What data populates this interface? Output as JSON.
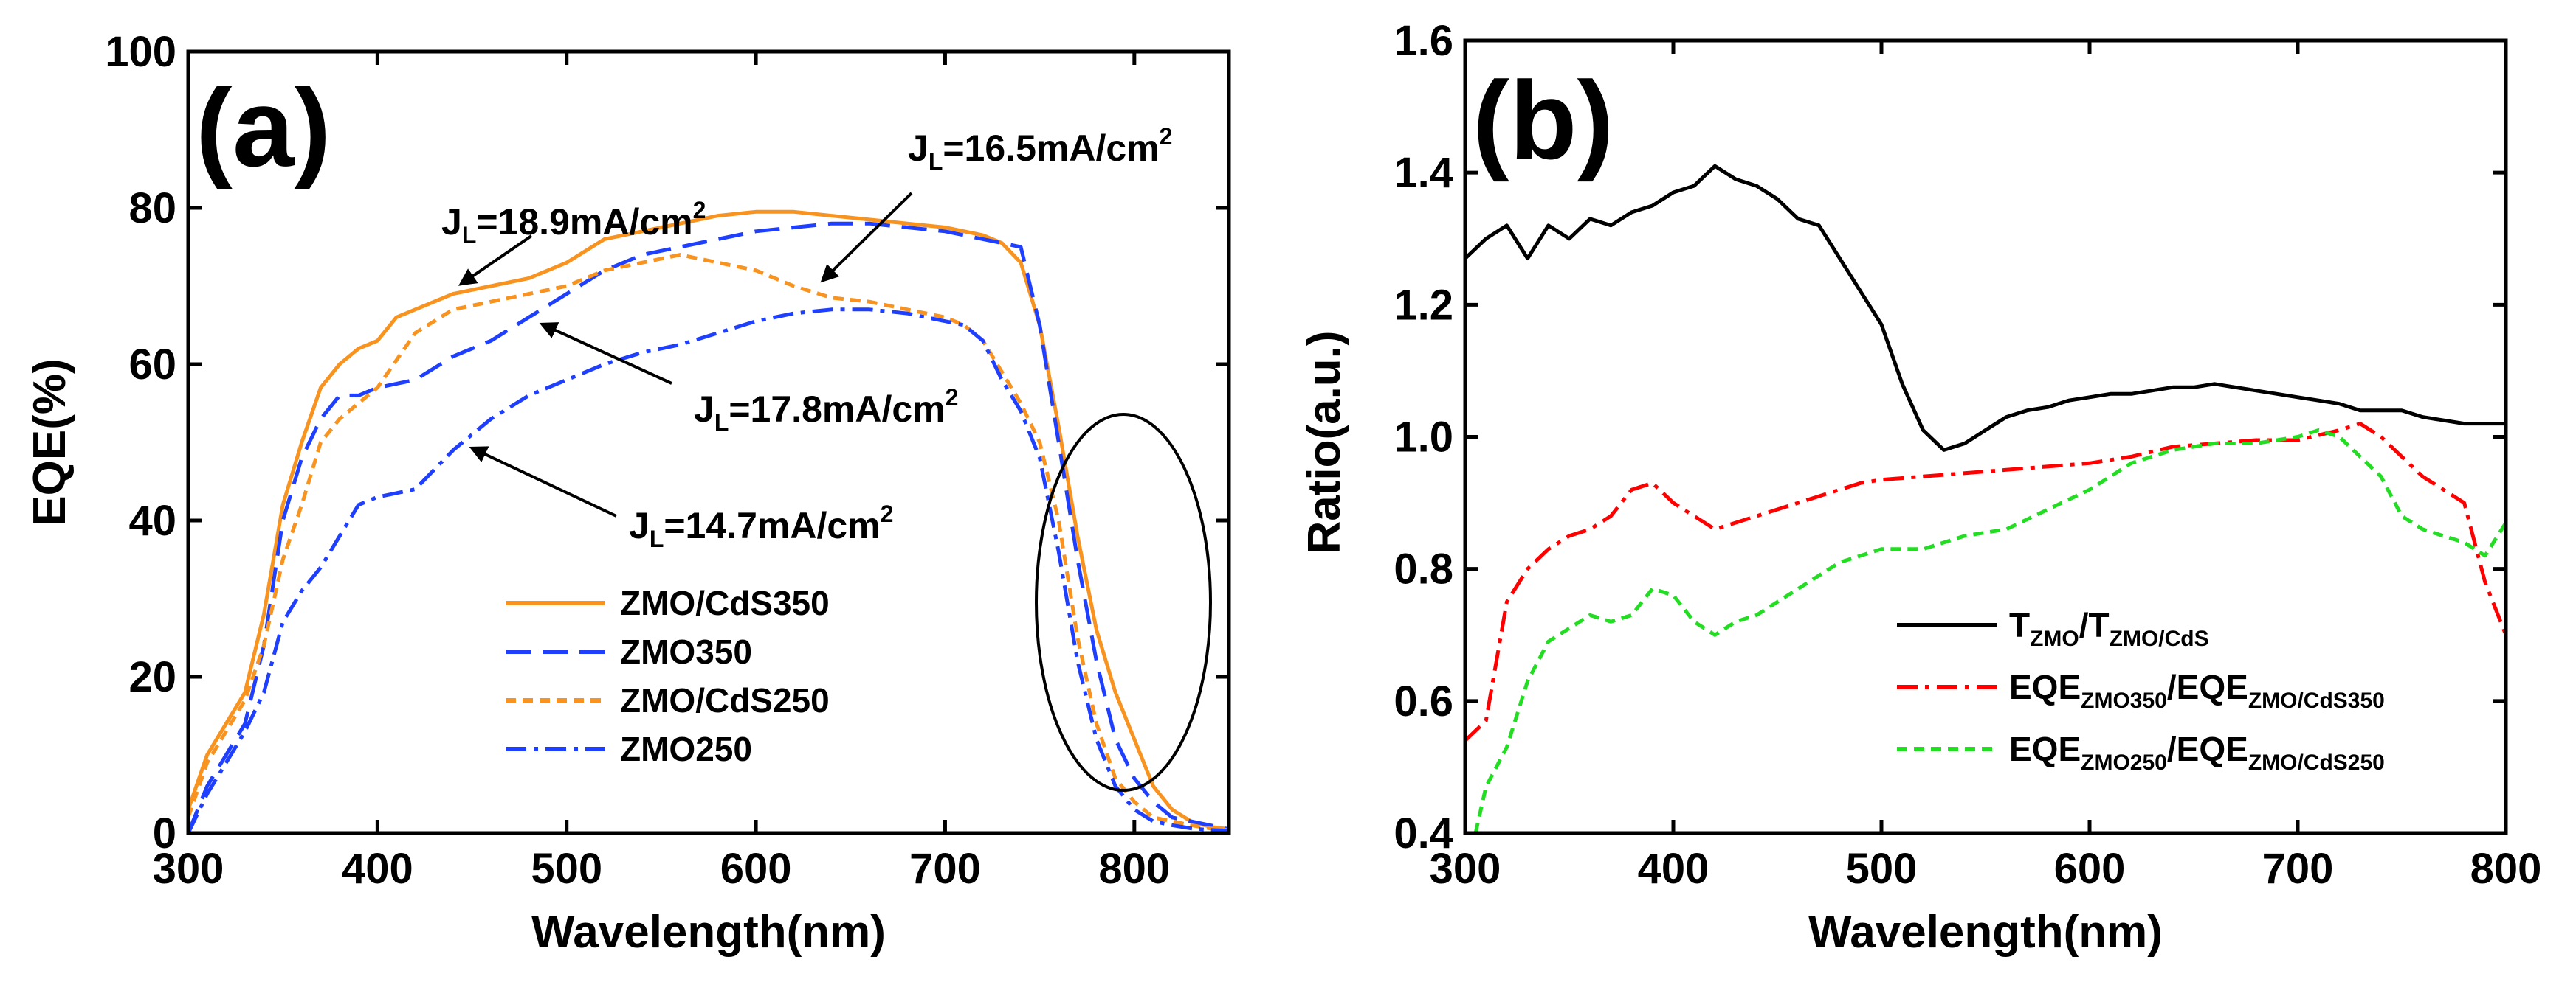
{
  "chart_data": [
    {
      "panel": "(a)",
      "type": "line",
      "xlabel": "Wavelength(nm)",
      "ylabel": "EQE(%)",
      "xlim": [
        300,
        850
      ],
      "ylim": [
        0,
        100
      ],
      "xticks": [
        300,
        400,
        500,
        600,
        700,
        800
      ],
      "yticks": [
        0,
        20,
        40,
        60,
        80,
        100
      ],
      "legend_position": "bottom-center",
      "series": [
        {
          "name": "ZMO/CdS350",
          "color": "#f7931e",
          "dash": "solid",
          "x": [
            300,
            310,
            320,
            330,
            340,
            350,
            360,
            370,
            380,
            390,
            400,
            410,
            420,
            440,
            460,
            480,
            500,
            520,
            540,
            560,
            580,
            600,
            620,
            640,
            660,
            680,
            700,
            720,
            730,
            740,
            750,
            760,
            770,
            780,
            790,
            800,
            810,
            820,
            830,
            840,
            850
          ],
          "y": [
            3,
            10,
            14,
            18,
            28,
            42,
            50,
            57,
            60,
            62,
            63,
            66,
            67,
            69,
            70,
            71,
            73,
            76,
            77,
            78,
            79,
            79.5,
            79.5,
            79,
            78.5,
            78,
            77.5,
            76.5,
            75.5,
            73,
            65,
            52,
            38,
            26,
            18,
            12,
            6,
            3,
            1.5,
            0.8,
            0.5
          ]
        },
        {
          "name": "ZMO350",
          "color": "#1f3fff",
          "dash": "long-dash",
          "x": [
            300,
            310,
            320,
            330,
            340,
            350,
            360,
            370,
            380,
            390,
            400,
            420,
            440,
            460,
            480,
            500,
            520,
            540,
            560,
            580,
            600,
            620,
            640,
            660,
            680,
            700,
            720,
            730,
            740,
            750,
            760,
            770,
            780,
            790,
            800,
            810,
            820,
            830,
            840,
            850
          ],
          "y": [
            0,
            6,
            10,
            14,
            24,
            40,
            48,
            53,
            56,
            56,
            57,
            58,
            61,
            63,
            66,
            69,
            72,
            74,
            75,
            76,
            77,
            77.5,
            78,
            78,
            77.5,
            77,
            76,
            75.5,
            75,
            65,
            50,
            35,
            22,
            12,
            7,
            4,
            2,
            1.5,
            1,
            0.5
          ]
        },
        {
          "name": "ZMO/CdS250",
          "color": "#f7931e",
          "dash": "short-dash",
          "x": [
            300,
            310,
            320,
            330,
            340,
            350,
            360,
            370,
            380,
            390,
            400,
            420,
            440,
            460,
            480,
            500,
            520,
            540,
            560,
            580,
            600,
            620,
            640,
            660,
            680,
            700,
            710,
            720,
            730,
            740,
            750,
            760,
            770,
            780,
            790,
            800,
            810,
            820,
            830,
            840,
            850
          ],
          "y": [
            2,
            9,
            13,
            17,
            24,
            35,
            42,
            50,
            53,
            55,
            57,
            64,
            67,
            68,
            69,
            70,
            72,
            73,
            74,
            73,
            72,
            70,
            68.5,
            68,
            67,
            66,
            65,
            63,
            59,
            55,
            50,
            40,
            25,
            14,
            7,
            4,
            2,
            1.5,
            1,
            0.6,
            0.4
          ]
        },
        {
          "name": "ZMO250",
          "color": "#1f3fff",
          "dash": "dash-dot",
          "x": [
            300,
            310,
            320,
            330,
            340,
            350,
            360,
            370,
            380,
            390,
            400,
            420,
            440,
            460,
            480,
            500,
            520,
            540,
            560,
            580,
            600,
            620,
            640,
            660,
            680,
            700,
            710,
            720,
            730,
            740,
            750,
            760,
            770,
            780,
            790,
            800,
            810,
            820,
            830,
            840,
            850
          ],
          "y": [
            0,
            5,
            9,
            13,
            18,
            27,
            31,
            34,
            38,
            42,
            43,
            44,
            49,
            53,
            56,
            58,
            60,
            61.5,
            62.5,
            64,
            65.5,
            66.5,
            67,
            67,
            66.5,
            65.5,
            65,
            63,
            58,
            54,
            48,
            36,
            22,
            12,
            6,
            3,
            1.5,
            1,
            0.6,
            0.4,
            0.3
          ]
        }
      ],
      "annotations": [
        {
          "main": "J",
          "sub": "L",
          "rest": "=18.9mA/cm",
          "sup": "2"
        },
        {
          "main": "J",
          "sub": "L",
          "rest": "=16.5mA/cm",
          "sup": "2"
        },
        {
          "main": "J",
          "sub": "L",
          "rest": "=17.8mA/cm",
          "sup": "2"
        },
        {
          "main": "J",
          "sub": "L",
          "rest": "=14.7mA/cm",
          "sup": "2"
        }
      ]
    },
    {
      "panel": "(b)",
      "type": "line",
      "xlabel": "Wavelength(nm)",
      "ylabel": "Ratio(a.u.)",
      "xlim": [
        300,
        800
      ],
      "ylim": [
        0.4,
        1.6
      ],
      "xticks": [
        300,
        400,
        500,
        600,
        700,
        800
      ],
      "yticks": [
        0.4,
        0.6,
        0.8,
        1.0,
        1.2,
        1.4,
        1.6
      ],
      "ytick_labels": [
        "0.4",
        "0.6",
        "0.8",
        "1.0",
        "1.2",
        "1.4",
        "1.6"
      ],
      "legend_position": "bottom-center",
      "series": [
        {
          "name": "T_ZMO/T_ZMO/CdS",
          "color": "#000000",
          "dash": "solid",
          "legend": {
            "p1": "T",
            "s1": "ZMO",
            "p2": "/T",
            "s2": "ZMO/CdS"
          },
          "x": [
            300,
            310,
            320,
            330,
            340,
            350,
            360,
            370,
            380,
            390,
            400,
            410,
            420,
            430,
            440,
            450,
            460,
            470,
            480,
            490,
            500,
            510,
            520,
            530,
            540,
            550,
            560,
            570,
            580,
            590,
            600,
            610,
            620,
            630,
            640,
            650,
            660,
            670,
            680,
            690,
            700,
            710,
            720,
            730,
            740,
            750,
            760,
            770,
            780,
            790,
            800
          ],
          "y": [
            1.27,
            1.3,
            1.32,
            1.27,
            1.32,
            1.3,
            1.33,
            1.32,
            1.34,
            1.35,
            1.37,
            1.38,
            1.41,
            1.39,
            1.38,
            1.36,
            1.33,
            1.32,
            1.27,
            1.22,
            1.17,
            1.08,
            1.01,
            0.98,
            0.99,
            1.01,
            1.03,
            1.04,
            1.045,
            1.055,
            1.06,
            1.065,
            1.065,
            1.07,
            1.075,
            1.075,
            1.08,
            1.075,
            1.07,
            1.065,
            1.06,
            1.055,
            1.05,
            1.04,
            1.04,
            1.04,
            1.03,
            1.025,
            1.02,
            1.02,
            1.02
          ]
        },
        {
          "name": "EQE_ZMO350/EQE_ZMO/CdS350",
          "color": "#ff0000",
          "dash": "dash-dot",
          "legend": {
            "p1": "EQE",
            "s1": "ZMO350",
            "p2": "/EQE",
            "s2": "ZMO/CdS350"
          },
          "x": [
            300,
            310,
            320,
            330,
            340,
            350,
            360,
            370,
            380,
            390,
            400,
            410,
            420,
            430,
            440,
            450,
            460,
            470,
            480,
            490,
            500,
            520,
            540,
            560,
            580,
            600,
            620,
            640,
            660,
            680,
            700,
            720,
            730,
            740,
            750,
            760,
            770,
            780,
            790,
            800
          ],
          "y": [
            0.54,
            0.57,
            0.75,
            0.8,
            0.83,
            0.85,
            0.86,
            0.88,
            0.92,
            0.93,
            0.9,
            0.88,
            0.86,
            0.87,
            0.88,
            0.89,
            0.9,
            0.91,
            0.92,
            0.93,
            0.935,
            0.94,
            0.945,
            0.95,
            0.955,
            0.96,
            0.97,
            0.985,
            0.99,
            0.995,
            0.995,
            1.01,
            1.02,
            1.0,
            0.97,
            0.94,
            0.92,
            0.9,
            0.78,
            0.7
          ]
        },
        {
          "name": "EQE_ZMO250/EQE_ZMO/CdS250",
          "color": "#22dd22",
          "dash": "short-dash",
          "legend": {
            "p1": "EQE",
            "s1": "ZMO250",
            "p2": "/EQE",
            "s2": "ZMO/CdS250"
          },
          "x": [
            305,
            310,
            320,
            330,
            340,
            350,
            360,
            370,
            380,
            390,
            400,
            410,
            420,
            430,
            440,
            450,
            460,
            470,
            480,
            490,
            500,
            520,
            540,
            560,
            580,
            600,
            620,
            640,
            660,
            680,
            700,
            710,
            720,
            730,
            740,
            750,
            760,
            770,
            780,
            790,
            800
          ],
          "y": [
            0.4,
            0.47,
            0.53,
            0.63,
            0.69,
            0.71,
            0.73,
            0.72,
            0.73,
            0.77,
            0.76,
            0.72,
            0.7,
            0.72,
            0.73,
            0.75,
            0.77,
            0.79,
            0.81,
            0.82,
            0.83,
            0.83,
            0.85,
            0.86,
            0.89,
            0.92,
            0.96,
            0.98,
            0.99,
            0.99,
            1.0,
            1.01,
            1.0,
            0.97,
            0.94,
            0.88,
            0.86,
            0.85,
            0.84,
            0.82,
            0.87
          ]
        }
      ]
    }
  ]
}
